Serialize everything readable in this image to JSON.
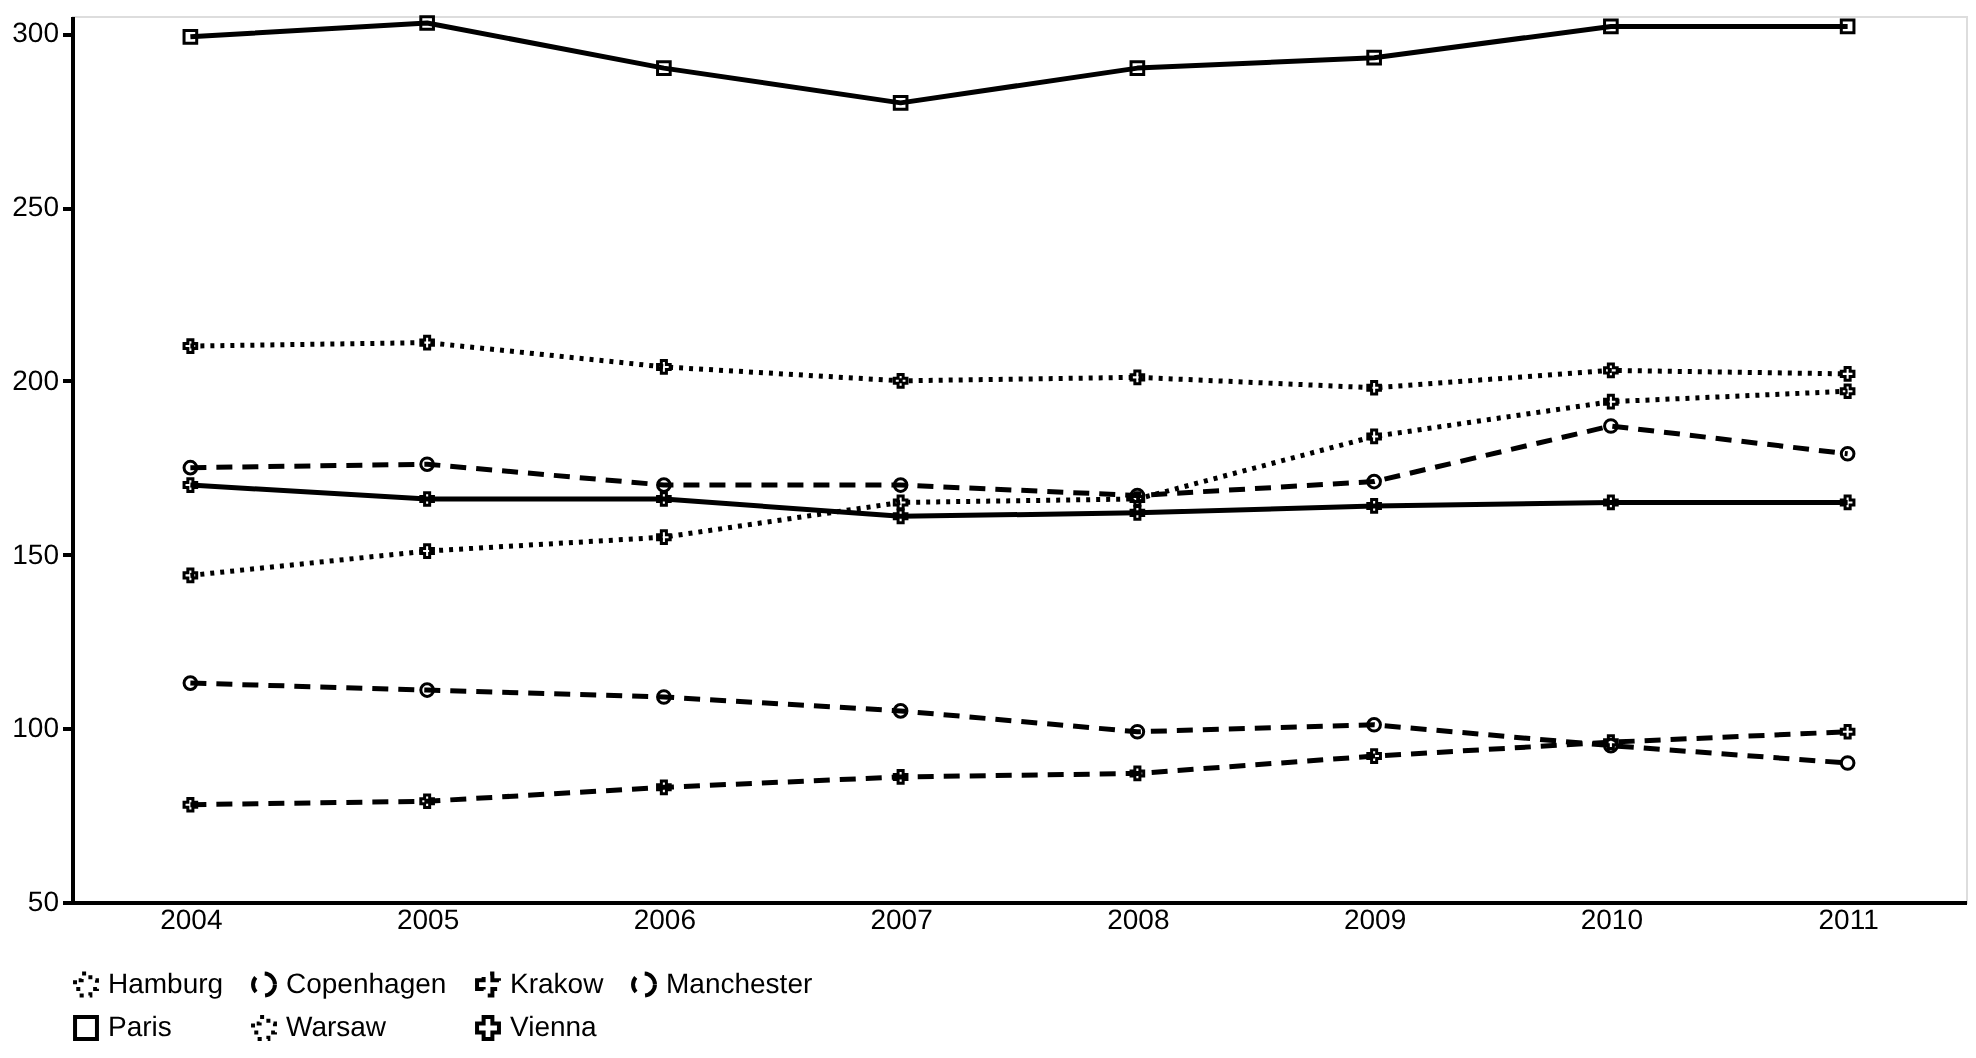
{
  "chart_data": {
    "type": "line",
    "categories": [
      "2004",
      "2005",
      "2006",
      "2007",
      "2008",
      "2009",
      "2010",
      "2011"
    ],
    "series": [
      {
        "name": "Hamburg",
        "color": "#000000",
        "line_style": "dotted",
        "marker": "cross",
        "values": [
          210,
          211,
          204,
          200,
          201,
          198,
          203,
          202
        ]
      },
      {
        "name": "Copenhagen",
        "color": "#000000",
        "line_style": "dashed",
        "marker": "circle",
        "values": [
          175,
          176,
          170,
          170,
          167,
          171,
          187,
          179
        ]
      },
      {
        "name": "Krakow",
        "color": "#000000",
        "line_style": "dashed",
        "marker": "cross",
        "values": [
          78,
          79,
          83,
          86,
          87,
          92,
          96,
          99
        ]
      },
      {
        "name": "Manchester",
        "color": "#000000",
        "line_style": "dashed",
        "marker": "circle",
        "values": [
          113,
          111,
          109,
          105,
          99,
          101,
          95,
          90
        ]
      },
      {
        "name": "Paris",
        "color": "#000000",
        "line_style": "solid",
        "marker": "square",
        "values": [
          299,
          303,
          290,
          280,
          290,
          293,
          302,
          302
        ]
      },
      {
        "name": "Warsaw",
        "color": "#000000",
        "line_style": "dotted",
        "marker": "cross",
        "values": [
          144,
          151,
          155,
          165,
          166,
          184,
          194,
          197
        ]
      },
      {
        "name": "Vienna",
        "color": "#000000",
        "line_style": "solid",
        "marker": "cross",
        "values": [
          170,
          166,
          166,
          161,
          162,
          164,
          165,
          165
        ]
      }
    ],
    "ylim": [
      50,
      305
    ],
    "yticks": [
      50,
      100,
      150,
      200,
      250,
      300
    ],
    "grid": false,
    "legend": "bottom"
  }
}
